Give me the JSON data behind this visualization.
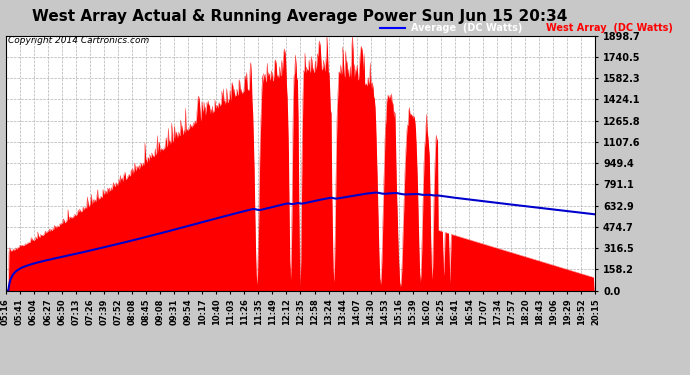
{
  "title": "West Array Actual & Running Average Power Sun Jun 15 20:34",
  "copyright": "Copyright 2014 Cartronics.com",
  "ymax": 1898.7,
  "yticks": [
    0.0,
    158.2,
    316.5,
    474.7,
    632.9,
    791.1,
    949.4,
    1107.6,
    1265.8,
    1424.1,
    1582.3,
    1740.5,
    1898.7
  ],
  "background_color": "#c8c8c8",
  "plot_bg_color": "#ffffff",
  "grid_color": "#aaaaaa",
  "bar_color": "#ff0000",
  "avg_line_color": "#0000cc",
  "legend_bg_color": "#000080",
  "title_fontsize": 11,
  "tick_labels": [
    "05:16",
    "05:41",
    "06:04",
    "06:27",
    "06:50",
    "07:13",
    "07:26",
    "07:39",
    "07:52",
    "08:08",
    "08:45",
    "09:08",
    "09:31",
    "09:54",
    "10:17",
    "10:40",
    "11:03",
    "11:26",
    "11:35",
    "11:49",
    "12:12",
    "12:35",
    "12:58",
    "13:24",
    "13:44",
    "14:07",
    "14:30",
    "14:53",
    "15:16",
    "15:39",
    "16:02",
    "16:25",
    "16:41",
    "16:54",
    "17:07",
    "17:34",
    "17:57",
    "18:20",
    "18:43",
    "19:06",
    "19:29",
    "19:52",
    "20:15"
  ]
}
